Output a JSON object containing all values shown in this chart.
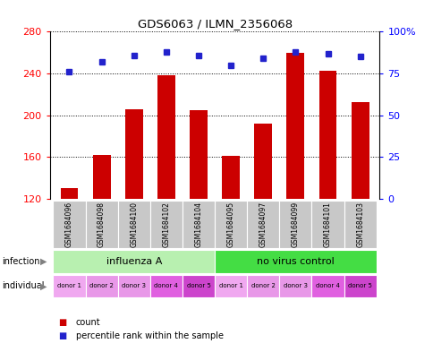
{
  "title": "GDS6063 / ILMN_2356068",
  "samples": [
    "GSM1684096",
    "GSM1684098",
    "GSM1684100",
    "GSM1684102",
    "GSM1684104",
    "GSM1684095",
    "GSM1684097",
    "GSM1684099",
    "GSM1684101",
    "GSM1684103"
  ],
  "counts": [
    130,
    162,
    206,
    238,
    205,
    161,
    192,
    260,
    243,
    213
  ],
  "percentiles": [
    76,
    82,
    86,
    88,
    86,
    80,
    84,
    88,
    87,
    85
  ],
  "ylim_left": [
    120,
    280
  ],
  "ylim_right": [
    0,
    100
  ],
  "yticks_left": [
    120,
    160,
    200,
    240,
    280
  ],
  "yticks_right": [
    0,
    25,
    50,
    75,
    100
  ],
  "ytick_labels_right": [
    "0",
    "25",
    "50",
    "75",
    "100%"
  ],
  "infection_groups": [
    {
      "label": "influenza A",
      "start": 0,
      "end": 5,
      "color": "#b8f0b0"
    },
    {
      "label": "no virus control",
      "start": 5,
      "end": 10,
      "color": "#44dd44"
    }
  ],
  "individuals": [
    "donor 1",
    "donor 2",
    "donor 3",
    "donor 4",
    "donor 5",
    "donor 1",
    "donor 2",
    "donor 3",
    "donor 4",
    "donor 5"
  ],
  "individual_colors": [
    "#f0a8f0",
    "#e898e8",
    "#e898e8",
    "#e060e0",
    "#cc44cc",
    "#f0a8f0",
    "#e898e8",
    "#e898e8",
    "#e060e0",
    "#cc44cc"
  ],
  "bar_color": "#cc0000",
  "dot_color": "#2222cc",
  "bar_width": 0.55,
  "sample_bg_color": "#c8c8c8",
  "legend_items": [
    {
      "color": "#cc0000",
      "label": "count"
    },
    {
      "color": "#2222cc",
      "label": "percentile rank within the sample"
    }
  ]
}
